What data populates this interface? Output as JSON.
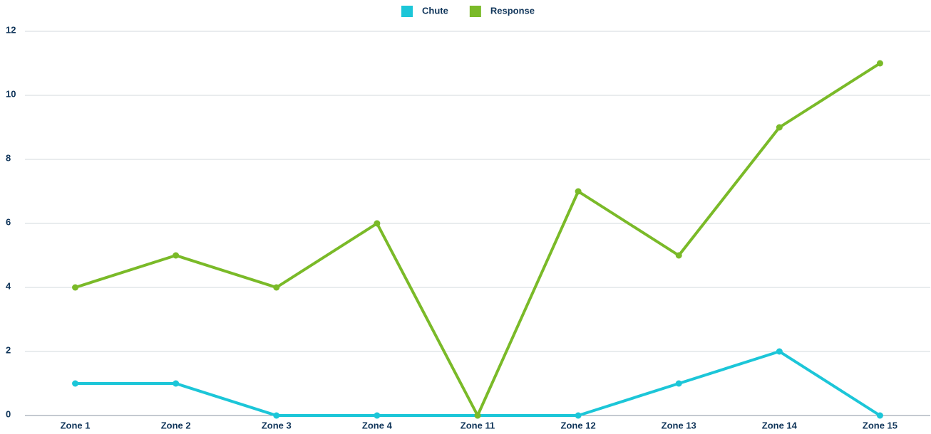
{
  "chart_data": {
    "type": "line",
    "categories": [
      "Zone 1",
      "Zone 2",
      "Zone 3",
      "Zone 4",
      "Zone 11",
      "Zone 12",
      "Zone 13",
      "Zone 14",
      "Zone 15"
    ],
    "series": [
      {
        "name": "Chute",
        "color": "#1cc6d8",
        "values": [
          1,
          1,
          0,
          0,
          0,
          0,
          1,
          2,
          0
        ]
      },
      {
        "name": "Response",
        "color": "#7aba28",
        "values": [
          4,
          5,
          4,
          6,
          0,
          7,
          5,
          9,
          11
        ]
      }
    ],
    "ylim": [
      0,
      12
    ],
    "yticks": [
      0,
      2,
      4,
      6,
      8,
      10,
      12
    ],
    "grid": true,
    "legend": "top"
  }
}
